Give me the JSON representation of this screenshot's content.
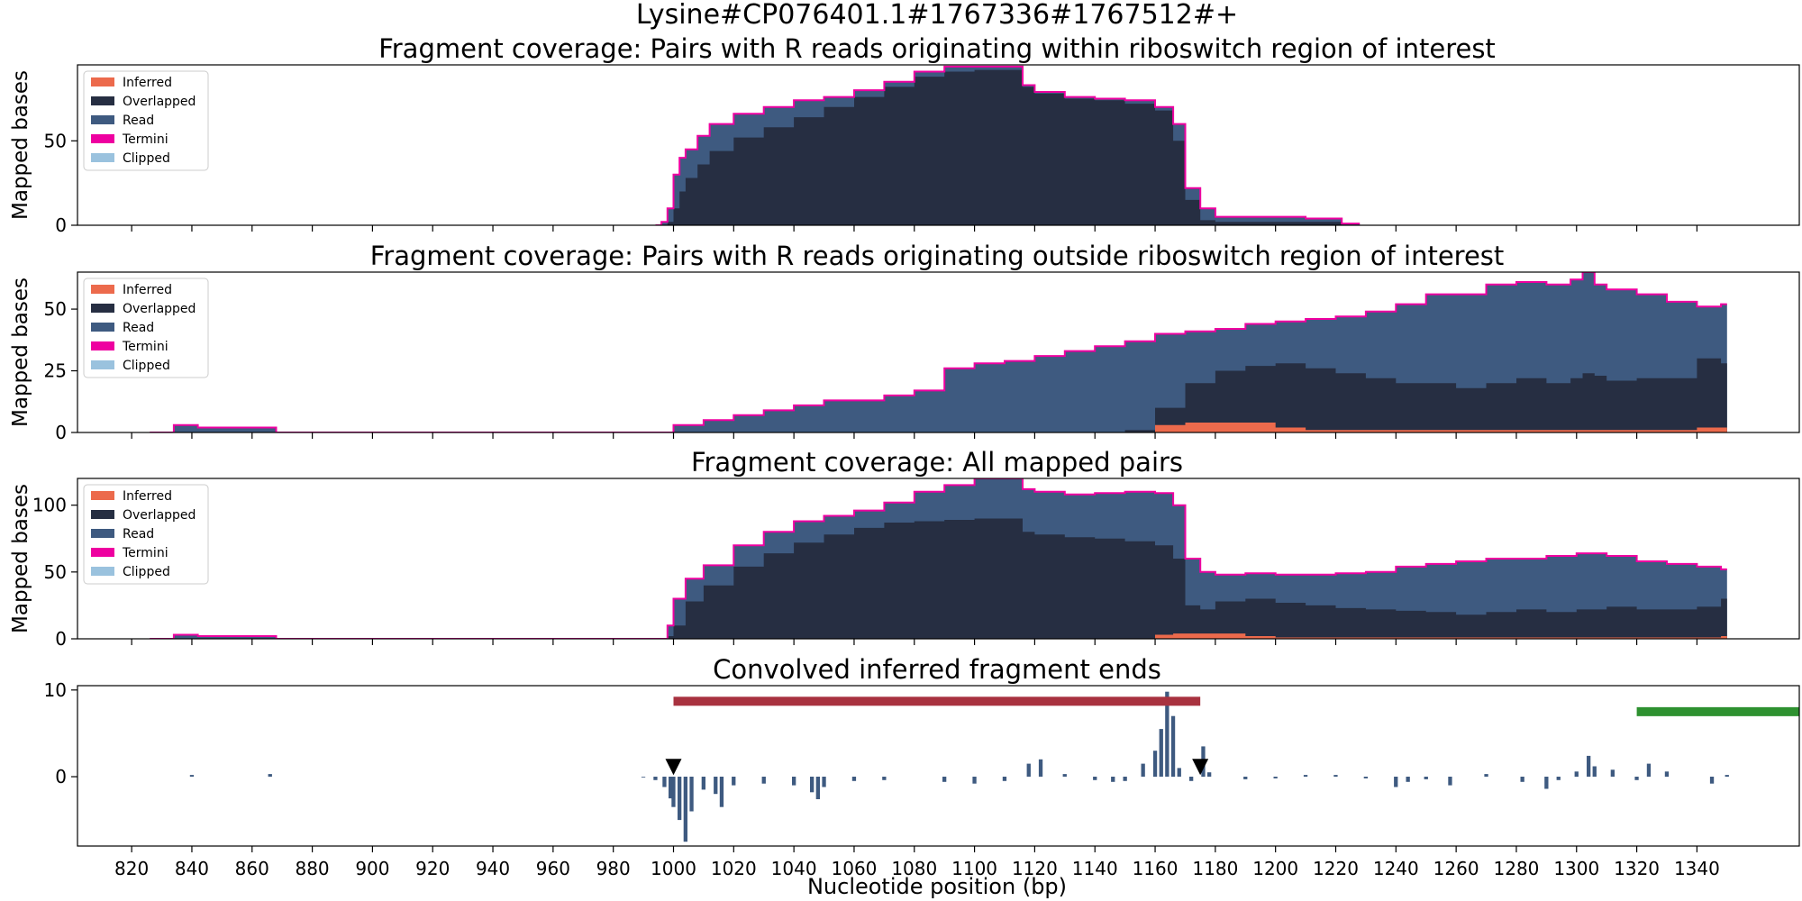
{
  "figure": {
    "suptitle": "Lysine#CP076401.1#1767336#1767512#+",
    "xlabel": "Nucleotide position (bp)",
    "xticks": [
      820,
      840,
      860,
      880,
      900,
      920,
      940,
      960,
      980,
      1000,
      1020,
      1040,
      1060,
      1080,
      1100,
      1120,
      1140,
      1160,
      1180,
      1200,
      1220,
      1240,
      1260,
      1280,
      1300,
      1320,
      1340
    ],
    "xlim": [
      802,
      1374
    ]
  },
  "legend": [
    {
      "label": "Inferred",
      "color": "#ec6a4c"
    },
    {
      "label": "Overlapped",
      "color": "#262e42"
    },
    {
      "label": "Read",
      "color": "#3e5a80"
    },
    {
      "label": "Termini",
      "color": "#ee00a0"
    },
    {
      "label": "Clipped",
      "color": "#9ac2de"
    }
  ],
  "chart_data": [
    {
      "type": "area",
      "title": "Fragment coverage: Pairs with R reads originating within riboswitch region of interest",
      "ylabel": "Mapped bases",
      "ylim": [
        0,
        95
      ],
      "yticks": [
        0,
        50
      ],
      "x": [
        994,
        996,
        998,
        1000,
        1002,
        1004,
        1008,
        1012,
        1020,
        1030,
        1040,
        1050,
        1060,
        1070,
        1080,
        1090,
        1100,
        1110,
        1116,
        1120,
        1130,
        1140,
        1150,
        1160,
        1166,
        1170,
        1175,
        1180,
        1190,
        1200,
        1210,
        1222,
        1228
      ],
      "total": [
        0,
        2,
        10,
        30,
        40,
        45,
        53,
        60,
        66,
        70,
        74,
        76,
        80,
        85,
        91,
        94,
        94,
        94,
        83,
        79,
        76,
        75,
        74,
        70,
        60,
        22,
        10,
        5,
        5,
        5,
        4,
        1,
        0
      ],
      "overlapped": [
        0,
        0,
        2,
        10,
        20,
        28,
        36,
        44,
        52,
        58,
        64,
        70,
        76,
        82,
        88,
        91,
        92,
        92,
        82,
        78,
        75,
        74,
        72,
        68,
        50,
        15,
        3,
        2,
        2,
        2,
        2,
        0,
        0
      ],
      "inferred": [
        0,
        0,
        0,
        0,
        0,
        0,
        0,
        0,
        0,
        0,
        0,
        0,
        0,
        0,
        0,
        0,
        0,
        0,
        0,
        0,
        0,
        0,
        0,
        0,
        0,
        0,
        0,
        0,
        0,
        0,
        0,
        0,
        0
      ]
    },
    {
      "type": "area",
      "title": "Fragment coverage: Pairs with R reads originating outside riboswitch region of interest",
      "ylabel": "Mapped bases",
      "ylim": [
        0,
        65
      ],
      "yticks": [
        0,
        25,
        50
      ],
      "x": [
        826,
        834,
        842,
        850,
        858,
        866,
        868,
        995,
        1000,
        1010,
        1020,
        1030,
        1040,
        1050,
        1060,
        1070,
        1080,
        1090,
        1100,
        1110,
        1120,
        1130,
        1140,
        1150,
        1160,
        1170,
        1180,
        1190,
        1200,
        1210,
        1220,
        1230,
        1240,
        1250,
        1260,
        1270,
        1280,
        1290,
        1298,
        1302,
        1306,
        1310,
        1320,
        1330,
        1340,
        1348,
        1350
      ],
      "total": [
        0,
        3,
        2,
        2,
        2,
        2,
        0,
        0,
        3,
        5,
        7,
        9,
        11,
        13,
        13,
        15,
        17,
        26,
        28,
        29,
        31,
        33,
        35,
        37,
        40,
        41,
        42,
        44,
        45,
        46,
        47,
        49,
        52,
        56,
        56,
        60,
        61,
        60,
        62,
        65,
        60,
        58,
        56,
        53,
        51,
        52,
        0
      ],
      "overlapped": [
        0,
        0,
        0,
        0,
        0,
        0,
        0,
        0,
        0,
        0,
        0,
        0,
        0,
        0,
        0,
        0,
        0,
        0,
        0,
        0,
        0,
        0,
        0,
        1,
        10,
        20,
        25,
        27,
        28,
        26,
        24,
        22,
        20,
        20,
        18,
        20,
        22,
        20,
        22,
        24,
        23,
        21,
        22,
        22,
        30,
        28,
        0
      ],
      "inferred": [
        0,
        0,
        0,
        0,
        0,
        0,
        0,
        0,
        0,
        0,
        0,
        0,
        0,
        0,
        0,
        0,
        0,
        0,
        0,
        0,
        0,
        0,
        0,
        0,
        3,
        4,
        4,
        4,
        2,
        1,
        1,
        1,
        1,
        1,
        1,
        1,
        1,
        1,
        1,
        1,
        1,
        1,
        1,
        1,
        2,
        2,
        0
      ]
    },
    {
      "type": "area",
      "title": "Fragment coverage: All mapped pairs",
      "ylabel": "Mapped bases",
      "ylim": [
        0,
        120
      ],
      "yticks": [
        0,
        50,
        100
      ],
      "x": [
        826,
        834,
        842,
        850,
        858,
        866,
        868,
        994,
        998,
        1000,
        1004,
        1010,
        1020,
        1030,
        1040,
        1050,
        1060,
        1070,
        1080,
        1090,
        1100,
        1110,
        1116,
        1120,
        1130,
        1140,
        1150,
        1160,
        1166,
        1170,
        1175,
        1180,
        1190,
        1200,
        1210,
        1220,
        1230,
        1240,
        1250,
        1260,
        1270,
        1280,
        1290,
        1300,
        1310,
        1320,
        1330,
        1340,
        1348,
        1350
      ],
      "total": [
        0,
        3,
        2,
        2,
        2,
        2,
        0,
        0,
        10,
        30,
        45,
        55,
        70,
        80,
        88,
        92,
        96,
        102,
        110,
        115,
        120,
        120,
        112,
        110,
        108,
        109,
        110,
        109,
        100,
        60,
        50,
        48,
        49,
        48,
        48,
        49,
        50,
        54,
        56,
        58,
        60,
        60,
        62,
        64,
        62,
        58,
        56,
        54,
        52,
        0
      ],
      "overlapped": [
        0,
        0,
        0,
        0,
        0,
        0,
        0,
        0,
        2,
        10,
        28,
        40,
        54,
        64,
        72,
        78,
        83,
        87,
        88,
        89,
        90,
        90,
        80,
        78,
        76,
        75,
        73,
        70,
        60,
        25,
        22,
        28,
        30,
        27,
        25,
        23,
        22,
        21,
        20,
        18,
        20,
        22,
        20,
        22,
        24,
        22,
        22,
        24,
        30,
        0
      ],
      "inferred": [
        0,
        0,
        0,
        0,
        0,
        0,
        0,
        0,
        0,
        0,
        0,
        0,
        0,
        0,
        0,
        0,
        0,
        0,
        0,
        0,
        0,
        0,
        0,
        0,
        0,
        0,
        0,
        3,
        4,
        4,
        4,
        4,
        2,
        1,
        1,
        1,
        1,
        1,
        1,
        1,
        1,
        1,
        1,
        1,
        1,
        1,
        1,
        1,
        2,
        0
      ]
    },
    {
      "type": "bar",
      "title": "Convolved inferred fragment ends",
      "ylim": [
        -8,
        10.5
      ],
      "yticks": [
        0,
        10
      ],
      "x": [
        840,
        866,
        990,
        994,
        997,
        999,
        1000,
        1002,
        1004,
        1006,
        1010,
        1014,
        1016,
        1020,
        1030,
        1040,
        1046,
        1048,
        1050,
        1060,
        1070,
        1090,
        1100,
        1110,
        1118,
        1122,
        1130,
        1140,
        1146,
        1150,
        1156,
        1160,
        1162,
        1164,
        1166,
        1168,
        1172,
        1176,
        1178,
        1190,
        1200,
        1210,
        1220,
        1230,
        1240,
        1244,
        1250,
        1258,
        1270,
        1282,
        1290,
        1294,
        1300,
        1304,
        1306,
        1312,
        1320,
        1324,
        1330,
        1345,
        1350
      ],
      "values": [
        0.2,
        0.3,
        0,
        -0.4,
        -1.2,
        -2.5,
        -3.5,
        -5,
        -7.5,
        -4,
        -1.5,
        -2,
        -3.5,
        -1,
        -0.8,
        -1,
        -1.8,
        -2.6,
        -1.2,
        -0.5,
        -0.4,
        -0.6,
        -0.8,
        -0.5,
        1.5,
        2,
        0.3,
        -0.4,
        -0.6,
        -0.5,
        1.5,
        3,
        5.5,
        9.8,
        7,
        1,
        -0.5,
        3.5,
        0.5,
        -0.3,
        -0.2,
        0.2,
        0.2,
        -0.2,
        -1.2,
        -0.6,
        -0.3,
        -1,
        0.3,
        -0.6,
        -1.4,
        -0.4,
        0.6,
        2.4,
        1.2,
        0.8,
        -0.4,
        1.5,
        0.6,
        -0.8,
        0.2
      ],
      "red_bar": {
        "start": 1000,
        "end": 1175,
        "y": 8.7,
        "color": "#a8323f"
      },
      "green_bar": {
        "start": 1320,
        "end": 1374,
        "y": 7.5,
        "color": "#2e9130"
      },
      "markers": [
        {
          "x": 1000,
          "y": 0.6
        },
        {
          "x": 1175,
          "y": 0.6
        }
      ]
    }
  ]
}
